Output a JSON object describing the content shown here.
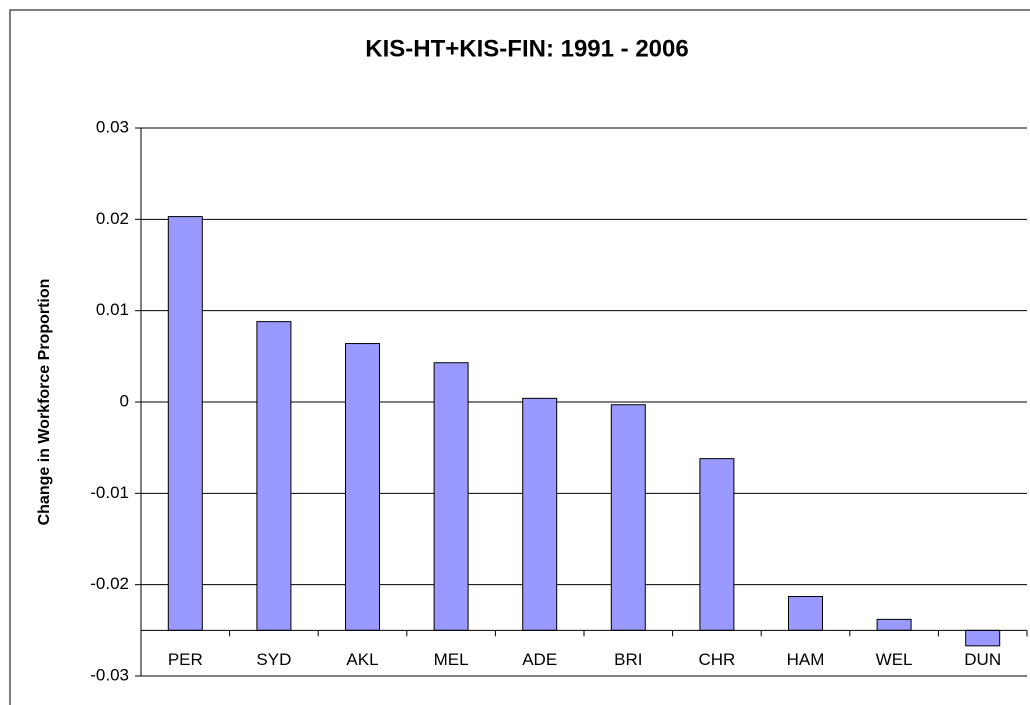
{
  "chart_data": {
    "type": "bar",
    "title": "KIS-HT+KIS-FIN: 1991 - 2006",
    "y_label": "Change in Workforce Proportion",
    "categories": [
      "PER",
      "SYD",
      "AKL",
      "MEL",
      "ADE",
      "BRI",
      "CHR",
      "HAM",
      "WEL",
      "DUN"
    ],
    "values": [
      0.0203,
      0.0088,
      0.0064,
      0.0043,
      0.0004,
      -0.0003,
      -0.0062,
      -0.0213,
      -0.0238,
      -0.0267
    ],
    "color": "#9999ff",
    "ylim": [
      -0.03,
      0.03
    ],
    "yticks": [
      -0.03,
      -0.02,
      -0.01,
      0,
      0.01,
      0.02,
      0.03
    ],
    "x_axis_crosses": -0.025,
    "grid": true
  }
}
